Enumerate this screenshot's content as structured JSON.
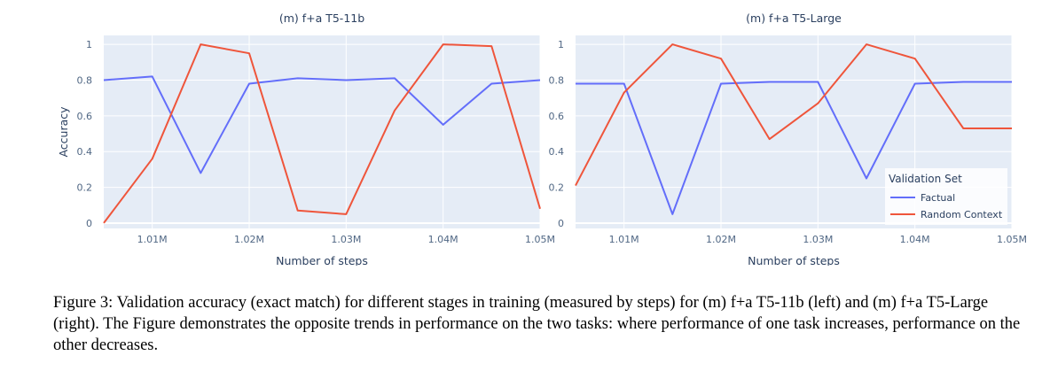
{
  "figure": {
    "caption": "Figure 3: Validation accuracy (exact match) for different stages in training (measured by steps) for (m) f+a T5-11b (left) and (m) f+a T5-Large (right). The Figure demonstrates the opposite trends in performance on the two tasks: where performance of one task increases, performance on the other decreases."
  },
  "legend": {
    "title": "Validation Set",
    "placement": "bottom-right of right panel"
  },
  "colors": {
    "Factual": "#636efa",
    "Random Context": "#ef553b",
    "plot_bg": "#e5ecf6",
    "grid": "#ffffff"
  },
  "chart_data": [
    {
      "type": "line",
      "title": "(m) f+a T5-11b",
      "xlabel": "Number of steps",
      "ylabel": "Accuracy",
      "x": [
        1005000,
        1010000,
        1015000,
        1020000,
        1025000,
        1030000,
        1035000,
        1040000,
        1045000,
        1050000
      ],
      "xlim": [
        1005000,
        1050000
      ],
      "ylim": [
        -0.03,
        1.05
      ],
      "xticks": [
        1010000,
        1020000,
        1030000,
        1040000,
        1050000
      ],
      "xtick_labels": [
        "1.01M",
        "1.02M",
        "1.03M",
        "1.04M",
        "1.05M"
      ],
      "yticks": [
        0,
        0.2,
        0.4,
        0.6,
        0.8,
        1
      ],
      "ytick_labels": [
        "0",
        "0.2",
        "0.4",
        "0.6",
        "0.8",
        "1"
      ],
      "grid": true,
      "series": [
        {
          "name": "Factual",
          "values": [
            0.8,
            0.82,
            0.28,
            0.78,
            0.81,
            0.8,
            0.81,
            0.55,
            0.78,
            0.8
          ]
        },
        {
          "name": "Random Context",
          "values": [
            0.0,
            0.36,
            1.0,
            0.95,
            0.07,
            0.05,
            0.63,
            1.0,
            0.99,
            0.08
          ]
        }
      ]
    },
    {
      "type": "line",
      "title": "(m) f+a T5-Large",
      "xlabel": "Number of steps",
      "ylabel": "",
      "x": [
        1005000,
        1010000,
        1015000,
        1020000,
        1025000,
        1030000,
        1035000,
        1040000,
        1045000,
        1050000
      ],
      "xlim": [
        1005000,
        1050000
      ],
      "ylim": [
        -0.03,
        1.05
      ],
      "xticks": [
        1010000,
        1020000,
        1030000,
        1040000,
        1050000
      ],
      "xtick_labels": [
        "1.01M",
        "1.02M",
        "1.03M",
        "1.04M",
        "1.05M"
      ],
      "yticks": [
        0,
        0.2,
        0.4,
        0.6,
        0.8,
        1
      ],
      "ytick_labels": [
        "0",
        "0.2",
        "0.4",
        "0.6",
        "0.8",
        "1"
      ],
      "grid": true,
      "series": [
        {
          "name": "Factual",
          "values": [
            0.78,
            0.78,
            0.05,
            0.78,
            0.79,
            0.79,
            0.25,
            0.78,
            0.79,
            0.79
          ]
        },
        {
          "name": "Random Context",
          "values": [
            0.21,
            0.73,
            1.0,
            0.92,
            0.47,
            0.67,
            1.0,
            0.92,
            0.53,
            0.53
          ]
        }
      ]
    }
  ]
}
